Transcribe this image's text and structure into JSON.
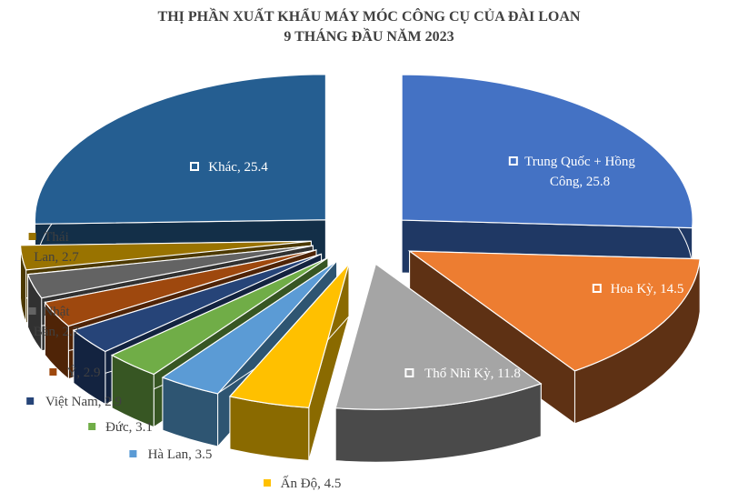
{
  "chart_data": {
    "type": "pie",
    "title": "THỊ PHẦN XUẤT KHẨU MÁY MÓC CÔNG CỤ CỦA ĐÀI LOAN",
    "subtitle": "9 THÁNG ĐẦU NĂM 2023",
    "legend": "data-labels",
    "slices": [
      {
        "label": "Trung Quốc + Hồng Công",
        "label_lines": [
          "Trung Quốc + Hồng",
          "Công, 25.8"
        ],
        "value": 25.8,
        "color": "#4472C4",
        "side": "#1F3864",
        "label_color": "#ffffff",
        "marker": "white"
      },
      {
        "label": "Hoa Kỳ",
        "label_lines": [
          "Hoa Kỳ, 14.5"
        ],
        "value": 14.5,
        "color": "#ED7D31",
        "side": "#5E3114",
        "label_color": "#ffffff",
        "marker": "white"
      },
      {
        "label": "Thổ Nhĩ Kỳ",
        "label_lines": [
          "Thổ Nhĩ Kỳ, 11.8"
        ],
        "value": 11.8,
        "color": "#A5A5A5",
        "side": "#4A4A4A",
        "label_color": "#ffffff",
        "marker": "white"
      },
      {
        "label": "Ấn Độ",
        "label_lines": [
          "Ấn Độ, 4.5"
        ],
        "value": 4.5,
        "color": "#FFC000",
        "side": "#8A6A00",
        "label_color": "#404040",
        "marker": "color"
      },
      {
        "label": "Hà Lan",
        "label_lines": [
          "Hà Lan, 3.5"
        ],
        "value": 3.5,
        "color": "#5B9BD5",
        "side": "#2E5572",
        "label_color": "#404040",
        "marker": "color"
      },
      {
        "label": "Đức",
        "label_lines": [
          "Đức, 3.1"
        ],
        "value": 3.1,
        "color": "#70AD47",
        "side": "#375623",
        "label_color": "#404040",
        "marker": "color"
      },
      {
        "label": "Việt Nam",
        "label_lines": [
          "Việt Nam, 2.9"
        ],
        "value": 2.9,
        "color": "#264478",
        "side": "#132340",
        "label_color": "#404040",
        "marker": "color"
      },
      {
        "label": "Ý",
        "label_lines": [
          "Ý, 2.9"
        ],
        "value": 2.9,
        "color": "#9E480E",
        "side": "#4F2407",
        "label_color": "#404040",
        "marker": "color"
      },
      {
        "label": "Nhật Bản",
        "label_lines": [
          "Nhật",
          "Bản, 2.7"
        ],
        "value": 2.7,
        "color": "#636363",
        "side": "#313131",
        "label_color": "#404040",
        "marker": "color"
      },
      {
        "label": "Thái Lan",
        "label_lines": [
          "Thái",
          "Lan, 2.7"
        ],
        "value": 2.7,
        "color": "#997300",
        "side": "#4C3900",
        "label_color": "#404040",
        "marker": "color"
      },
      {
        "label": "Khác",
        "label_lines": [
          "Khác, 25.4"
        ],
        "value": 25.4,
        "color": "#255E91",
        "side": "#132F48",
        "label_color": "#ffffff",
        "marker": "white"
      }
    ]
  }
}
